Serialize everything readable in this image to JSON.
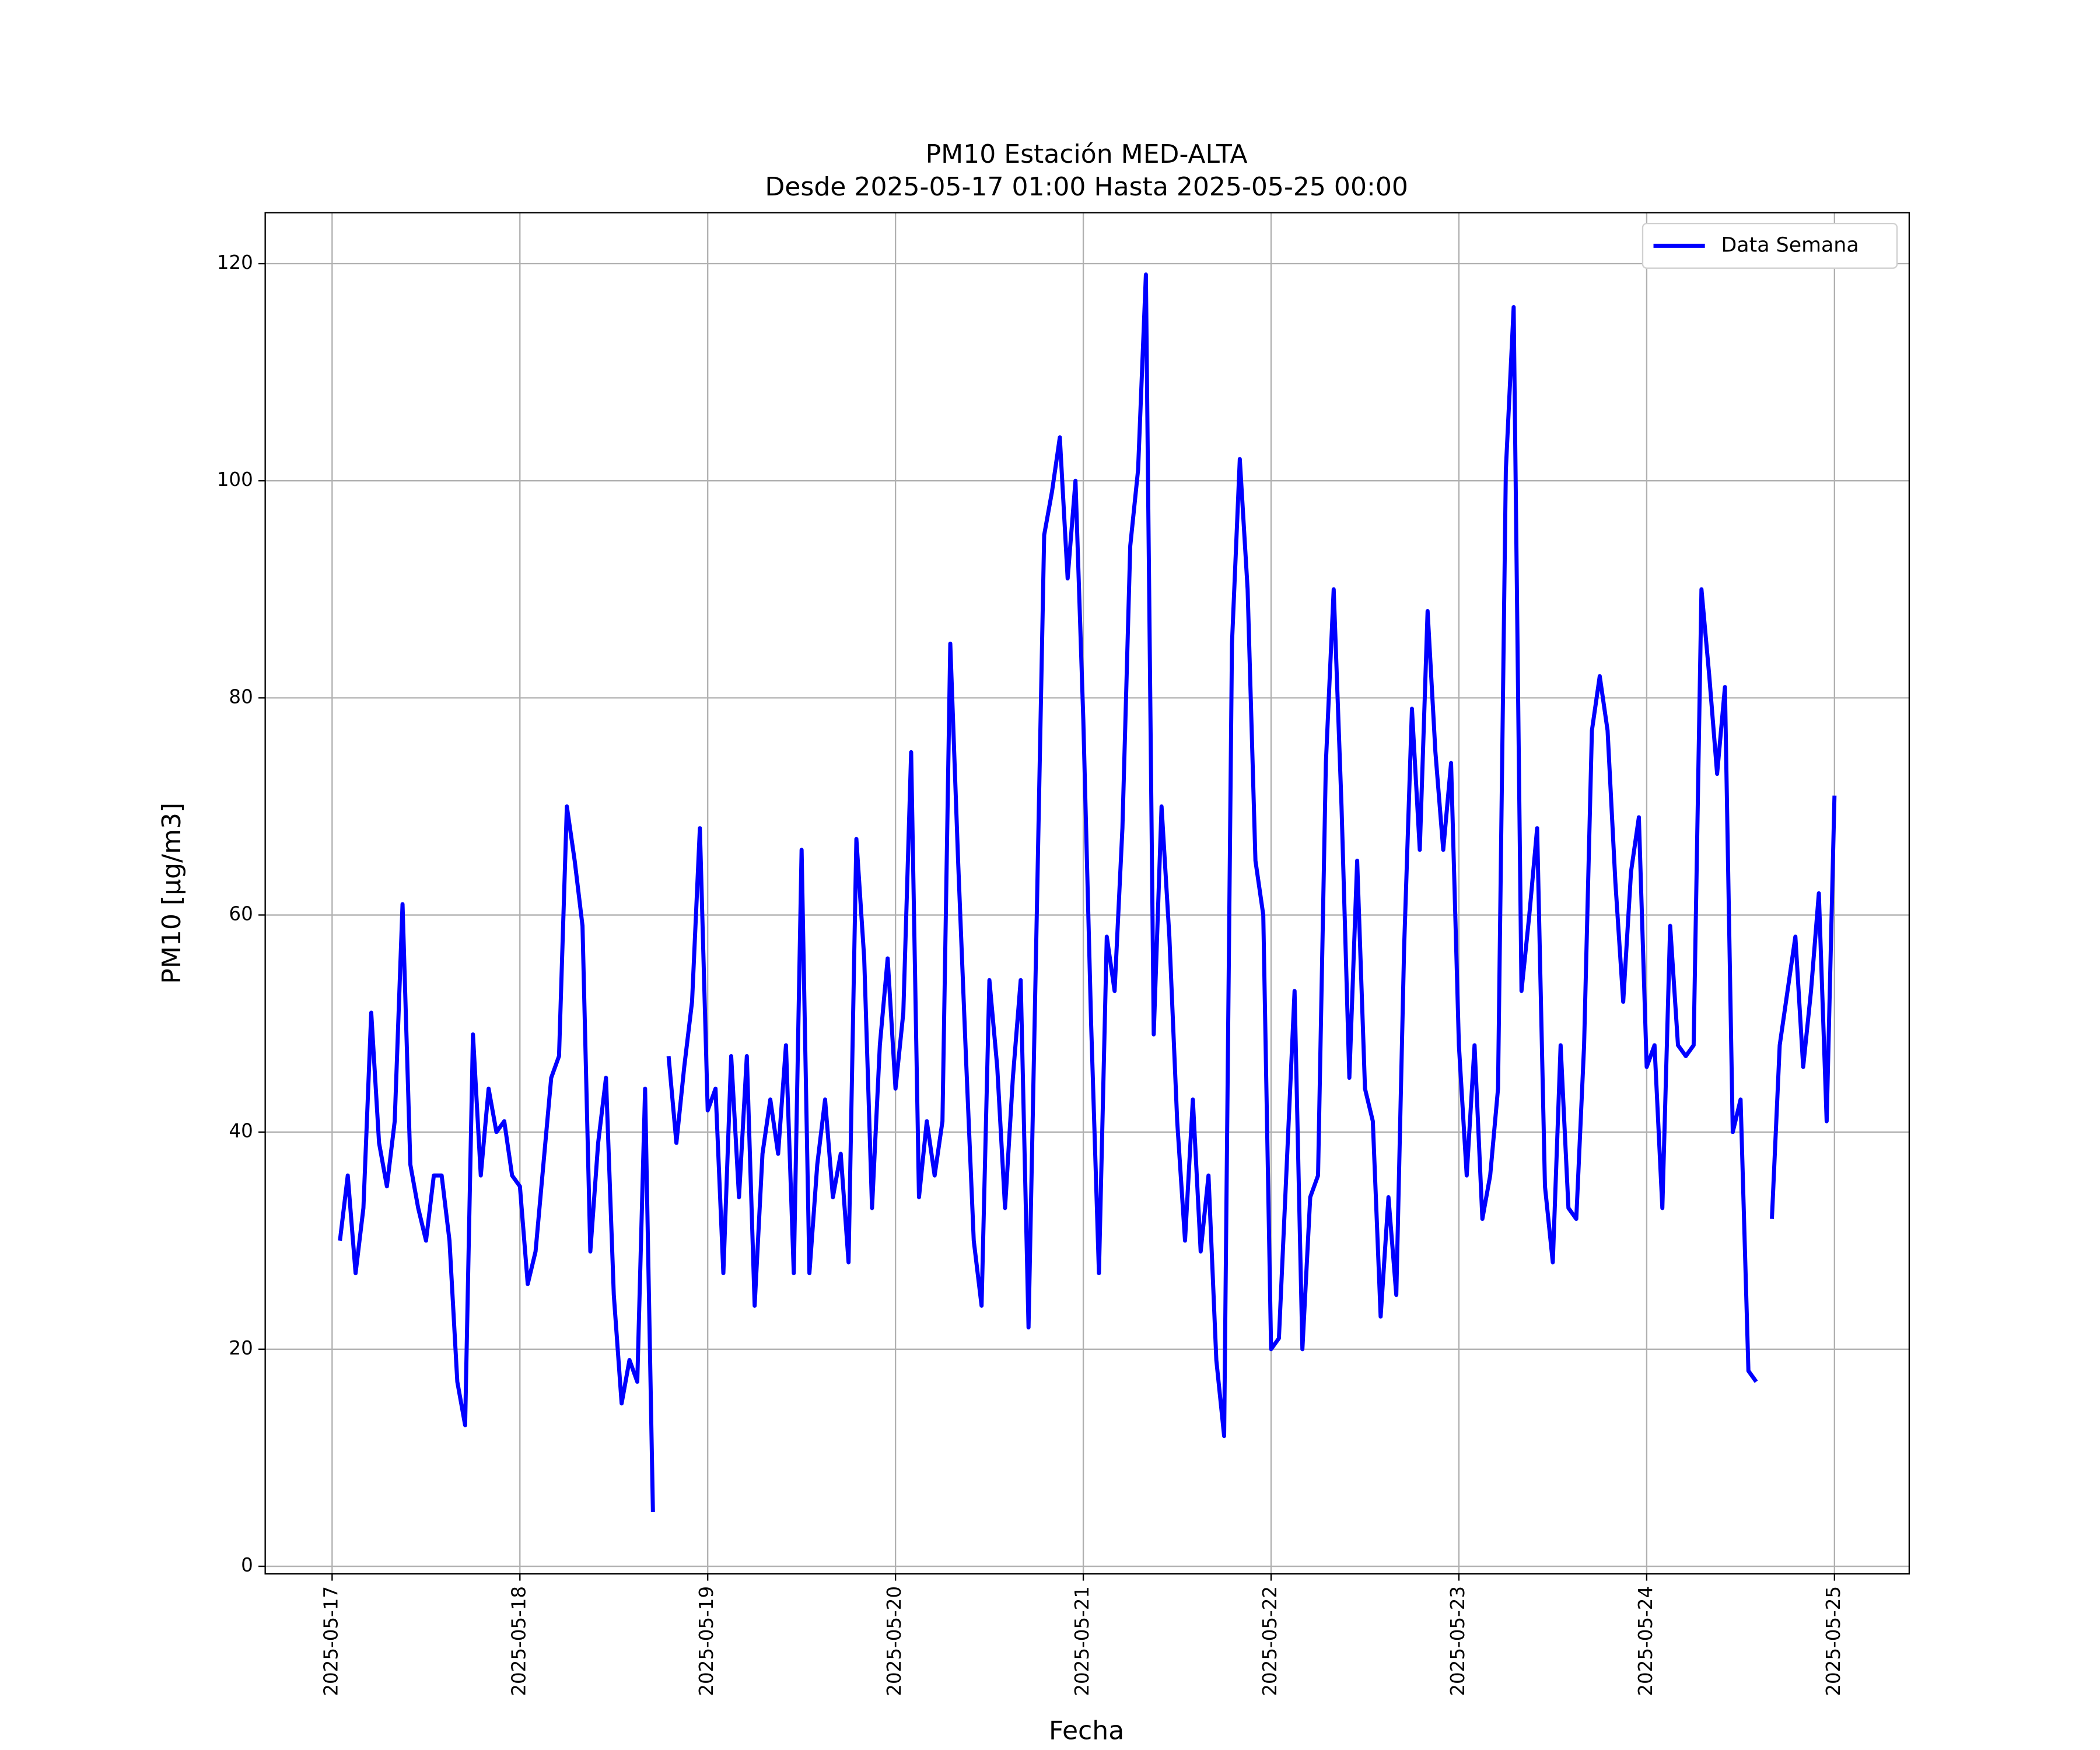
{
  "chart_data": {
    "type": "line",
    "title": "PM10 Estación MED-ALTA",
    "subtitle": "Desde 2025-05-17 01:00 Hasta 2025-05-25 00:00",
    "xlabel": "Fecha",
    "ylabel": "PM10 [μg/m3]",
    "x": [
      "2025-05-17 01:00",
      "2025-05-17 02:00",
      "2025-05-17 03:00",
      "2025-05-17 04:00",
      "2025-05-17 05:00",
      "2025-05-17 06:00",
      "2025-05-17 07:00",
      "2025-05-17 08:00",
      "2025-05-17 09:00",
      "2025-05-17 10:00",
      "2025-05-17 11:00",
      "2025-05-17 12:00",
      "2025-05-17 13:00",
      "2025-05-17 14:00",
      "2025-05-17 15:00",
      "2025-05-17 16:00",
      "2025-05-17 17:00",
      "2025-05-17 18:00",
      "2025-05-17 19:00",
      "2025-05-17 20:00",
      "2025-05-17 21:00",
      "2025-05-17 22:00",
      "2025-05-17 23:00",
      "2025-05-18 00:00",
      "2025-05-18 01:00",
      "2025-05-18 02:00",
      "2025-05-18 03:00",
      "2025-05-18 04:00",
      "2025-05-18 05:00",
      "2025-05-18 06:00",
      "2025-05-18 07:00",
      "2025-05-18 08:00",
      "2025-05-18 09:00",
      "2025-05-18 10:00",
      "2025-05-18 11:00",
      "2025-05-18 12:00",
      "2025-05-18 13:00",
      "2025-05-18 14:00",
      "2025-05-18 15:00",
      "2025-05-18 16:00",
      "2025-05-18 17:00",
      "2025-05-18 18:00",
      "2025-05-18 19:00",
      "2025-05-18 20:00",
      "2025-05-18 21:00",
      "2025-05-18 22:00",
      "2025-05-18 23:00",
      "2025-05-19 00:00",
      "2025-05-19 01:00",
      "2025-05-19 02:00",
      "2025-05-19 03:00",
      "2025-05-19 04:00",
      "2025-05-19 05:00",
      "2025-05-19 06:00",
      "2025-05-19 07:00",
      "2025-05-19 08:00",
      "2025-05-19 09:00",
      "2025-05-19 10:00",
      "2025-05-19 11:00",
      "2025-05-19 12:00",
      "2025-05-19 13:00",
      "2025-05-19 14:00",
      "2025-05-19 15:00",
      "2025-05-19 16:00",
      "2025-05-19 17:00",
      "2025-05-19 18:00",
      "2025-05-19 19:00",
      "2025-05-19 20:00",
      "2025-05-19 21:00",
      "2025-05-19 22:00",
      "2025-05-19 23:00",
      "2025-05-20 00:00",
      "2025-05-20 01:00",
      "2025-05-20 02:00",
      "2025-05-20 03:00",
      "2025-05-20 04:00",
      "2025-05-20 05:00",
      "2025-05-20 06:00",
      "2025-05-20 07:00",
      "2025-05-20 08:00",
      "2025-05-20 09:00",
      "2025-05-20 10:00",
      "2025-05-20 11:00",
      "2025-05-20 12:00",
      "2025-05-20 13:00",
      "2025-05-20 14:00",
      "2025-05-20 15:00",
      "2025-05-20 16:00",
      "2025-05-20 17:00",
      "2025-05-20 18:00",
      "2025-05-20 19:00",
      "2025-05-20 20:00",
      "2025-05-20 21:00",
      "2025-05-20 22:00",
      "2025-05-20 23:00",
      "2025-05-21 00:00",
      "2025-05-21 01:00",
      "2025-05-21 02:00",
      "2025-05-21 03:00",
      "2025-05-21 04:00",
      "2025-05-21 05:00",
      "2025-05-21 06:00",
      "2025-05-21 07:00",
      "2025-05-21 08:00",
      "2025-05-21 09:00",
      "2025-05-21 10:00",
      "2025-05-21 11:00",
      "2025-05-21 12:00",
      "2025-05-21 13:00",
      "2025-05-21 14:00",
      "2025-05-21 15:00",
      "2025-05-21 16:00",
      "2025-05-21 17:00",
      "2025-05-21 18:00",
      "2025-05-21 19:00",
      "2025-05-21 20:00",
      "2025-05-21 21:00",
      "2025-05-21 22:00",
      "2025-05-21 23:00",
      "2025-05-22 00:00",
      "2025-05-22 01:00",
      "2025-05-22 02:00",
      "2025-05-22 03:00",
      "2025-05-22 04:00",
      "2025-05-22 05:00",
      "2025-05-22 06:00",
      "2025-05-22 07:00",
      "2025-05-22 08:00",
      "2025-05-22 09:00",
      "2025-05-22 10:00",
      "2025-05-22 11:00",
      "2025-05-22 12:00",
      "2025-05-22 13:00",
      "2025-05-22 14:00",
      "2025-05-22 15:00",
      "2025-05-22 16:00",
      "2025-05-22 17:00",
      "2025-05-22 18:00",
      "2025-05-22 19:00",
      "2025-05-22 20:00",
      "2025-05-22 21:00",
      "2025-05-22 22:00",
      "2025-05-22 23:00",
      "2025-05-23 00:00",
      "2025-05-23 01:00",
      "2025-05-23 02:00",
      "2025-05-23 03:00",
      "2025-05-23 04:00",
      "2025-05-23 05:00",
      "2025-05-23 06:00",
      "2025-05-23 07:00",
      "2025-05-23 08:00",
      "2025-05-23 09:00",
      "2025-05-23 10:00",
      "2025-05-23 11:00",
      "2025-05-23 12:00",
      "2025-05-23 13:00",
      "2025-05-23 14:00",
      "2025-05-23 15:00",
      "2025-05-23 16:00",
      "2025-05-23 17:00",
      "2025-05-23 18:00",
      "2025-05-23 19:00",
      "2025-05-23 20:00",
      "2025-05-23 21:00",
      "2025-05-23 22:00",
      "2025-05-23 23:00",
      "2025-05-24 00:00",
      "2025-05-24 01:00",
      "2025-05-24 02:00",
      "2025-05-24 03:00",
      "2025-05-24 04:00",
      "2025-05-24 05:00",
      "2025-05-24 06:00",
      "2025-05-24 07:00",
      "2025-05-24 08:00",
      "2025-05-24 09:00",
      "2025-05-24 10:00",
      "2025-05-24 11:00",
      "2025-05-24 12:00",
      "2025-05-24 13:00",
      "2025-05-24 14:00",
      "2025-05-24 15:00",
      "2025-05-24 16:00",
      "2025-05-24 17:00",
      "2025-05-24 18:00",
      "2025-05-24 19:00",
      "2025-05-24 20:00",
      "2025-05-24 21:00",
      "2025-05-24 22:00",
      "2025-05-24 23:00",
      "2025-05-25 00:00"
    ],
    "series": [
      {
        "name": "Data Semana",
        "color": "#0000ff",
        "values": [
          30,
          36,
          27,
          33,
          51,
          39,
          35,
          41,
          61,
          37,
          33,
          30,
          36,
          36,
          30,
          17,
          13,
          49,
          36,
          44,
          40,
          41,
          36,
          35,
          26,
          29,
          37,
          45,
          47,
          70,
          65,
          59,
          29,
          39,
          45,
          25,
          15,
          19,
          17,
          44,
          5,
          null,
          47,
          39,
          46,
          52,
          68,
          42,
          44,
          27,
          47,
          34,
          47,
          24,
          38,
          43,
          38,
          48,
          27,
          66,
          27,
          37,
          43,
          34,
          38,
          28,
          67,
          56,
          33,
          48,
          56,
          44,
          51,
          75,
          34,
          41,
          36,
          41,
          85,
          65,
          47,
          30,
          24,
          54,
          46,
          33,
          45,
          54,
          22,
          58,
          95,
          99,
          104,
          91,
          100,
          78,
          50,
          27,
          58,
          53,
          68,
          94,
          101,
          119,
          49,
          70,
          58,
          41,
          30,
          43,
          29,
          36,
          19,
          12,
          85,
          102,
          90,
          65,
          60,
          20,
          21,
          37,
          53,
          20,
          34,
          36,
          74,
          90,
          70,
          45,
          65,
          44,
          41,
          23,
          34,
          25,
          57,
          79,
          66,
          88,
          75,
          66,
          74,
          48,
          36,
          48,
          32,
          36,
          44,
          101,
          116,
          53,
          60,
          68,
          35,
          28,
          48,
          33,
          32,
          48,
          77,
          82,
          77,
          63,
          52,
          64,
          69,
          46,
          48,
          33,
          59,
          48,
          47,
          48,
          90,
          82,
          73,
          81,
          40,
          43,
          18,
          17,
          null,
          32,
          48,
          53,
          58,
          46,
          53,
          62,
          41,
          71
        ]
      }
    ],
    "xlim": [
      "2025-05-16 15:27",
      "2025-05-25 09:33"
    ],
    "xticks": [
      "2025-05-17",
      "2025-05-18",
      "2025-05-19",
      "2025-05-20",
      "2025-05-21",
      "2025-05-22",
      "2025-05-23",
      "2025-05-24",
      "2025-05-25"
    ],
    "ylim": [
      -0.7,
      124.7
    ],
    "yticks": [
      0,
      20,
      40,
      60,
      80,
      100,
      120
    ],
    "grid": true,
    "legend": "upper right"
  }
}
